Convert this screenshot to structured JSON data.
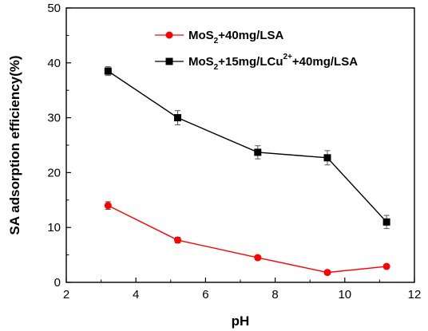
{
  "chart_data": {
    "type": "line",
    "title": "",
    "xlabel": "pH",
    "ylabel": "SA adsorption efficiency(%)",
    "xlim": [
      2,
      12
    ],
    "ylim": [
      0,
      50
    ],
    "x_ticks": [
      "2",
      "4",
      "6",
      "8",
      "10",
      "12"
    ],
    "y_ticks": [
      "0",
      "10",
      "20",
      "30",
      "40",
      "50"
    ],
    "grid": false,
    "legend_position": "top-right",
    "series": [
      {
        "name": "MoS2+40mg/LSA",
        "legend_parts": [
          "MoS",
          "2",
          "+40mg/LSA"
        ],
        "color": "#ff0000",
        "marker": "circle",
        "x": [
          3.2,
          5.2,
          7.5,
          9.5,
          11.2
        ],
        "y": [
          14.0,
          7.7,
          4.5,
          1.8,
          2.9
        ],
        "error": [
          0.7,
          0.5,
          0.4,
          0.3,
          0.3
        ]
      },
      {
        "name": "MoS2+15mg/LCu2++40mg/LSA",
        "legend_parts": [
          "MoS",
          "2",
          "+15mg/LCu",
          "2+",
          "+40mg/LSA"
        ],
        "color": "#000000",
        "marker": "square",
        "x": [
          3.2,
          5.2,
          7.5,
          9.5,
          11.2
        ],
        "y": [
          38.5,
          30.0,
          23.7,
          22.7,
          11.0
        ],
        "error": [
          0.8,
          1.3,
          1.2,
          1.3,
          1.2
        ]
      }
    ]
  }
}
